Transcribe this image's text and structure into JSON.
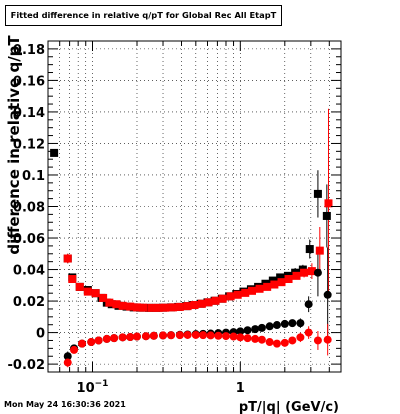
{
  "title": "Fitted difference in relative q/pT for Global Rec All EtapT",
  "timestamp": "Mon May 24 16:30:36 2021",
  "colors": {
    "series_black": "#000000",
    "series_red": "#ff0000",
    "grid": "#000000"
  },
  "chart_data": {
    "type": "scatter",
    "xlabel": "pT/|q| (GeV/c)",
    "ylabel": "difference in relative q/pT",
    "x_scale": "log",
    "xlim": [
      0.05,
      4.8
    ],
    "ylim": [
      -0.025,
      0.185
    ],
    "x_ticks": [
      {
        "value": 0.1,
        "label": "10^-1"
      },
      {
        "value": 1,
        "label": "1"
      }
    ],
    "y_ticks": [
      {
        "value": -0.02,
        "label": "-0.02"
      },
      {
        "value": 0,
        "label": "0"
      },
      {
        "value": 0.02,
        "label": "0.02"
      },
      {
        "value": 0.04,
        "label": "0.04"
      },
      {
        "value": 0.06,
        "label": "0.06"
      },
      {
        "value": 0.08,
        "label": "0.08"
      },
      {
        "value": 0.1,
        "label": "0.1"
      },
      {
        "value": 0.12,
        "label": "0.12"
      },
      {
        "value": 0.14,
        "label": "0.14"
      },
      {
        "value": 0.16,
        "label": "0.16"
      },
      {
        "value": 0.18,
        "label": "0.18"
      }
    ],
    "grid": true,
    "series": [
      {
        "marker": "square",
        "color": "#000000",
        "points": [
          [
            0.055,
            0.114,
            0.002
          ],
          [
            0.068,
            0.047,
            0.003
          ],
          [
            0.073,
            0.035,
            0.002
          ],
          [
            0.082,
            0.029,
            0.002
          ],
          [
            0.093,
            0.027,
            0.002
          ],
          [
            0.105,
            0.025,
            0.001
          ],
          [
            0.115,
            0.022,
            0.001
          ],
          [
            0.125,
            0.019,
            0.001
          ],
          [
            0.135,
            0.018,
            0.001
          ],
          [
            0.15,
            0.017,
            0.001
          ],
          [
            0.17,
            0.0165,
            0.001
          ],
          [
            0.19,
            0.016,
            0.001
          ],
          [
            0.21,
            0.0158,
            0.001
          ],
          [
            0.24,
            0.0157,
            0.001
          ],
          [
            0.27,
            0.0157,
            0.001
          ],
          [
            0.3,
            0.0158,
            0.001
          ],
          [
            0.34,
            0.016,
            0.001
          ],
          [
            0.38,
            0.0163,
            0.001
          ],
          [
            0.43,
            0.0168,
            0.001
          ],
          [
            0.48,
            0.0175,
            0.001
          ],
          [
            0.54,
            0.0183,
            0.001
          ],
          [
            0.6,
            0.0192,
            0.001
          ],
          [
            0.67,
            0.0202,
            0.001
          ],
          [
            0.75,
            0.0215,
            0.001
          ],
          [
            0.84,
            0.023,
            0.001
          ],
          [
            0.94,
            0.0245,
            0.001
          ],
          [
            1.05,
            0.026,
            0.001
          ],
          [
            1.18,
            0.0275,
            0.001
          ],
          [
            1.32,
            0.029,
            0.001
          ],
          [
            1.48,
            0.031,
            0.001
          ],
          [
            1.66,
            0.033,
            0.002
          ],
          [
            1.86,
            0.035,
            0.002
          ],
          [
            2.1,
            0.036,
            0.002
          ],
          [
            2.35,
            0.038,
            0.003
          ],
          [
            2.65,
            0.04,
            0.003
          ],
          [
            2.95,
            0.053,
            0.006
          ],
          [
            3.35,
            0.088,
            0.015
          ],
          [
            3.85,
            0.074,
            0.02
          ]
        ]
      },
      {
        "marker": "square",
        "color": "#ff0000",
        "points": [
          [
            0.068,
            0.047,
            0.003
          ],
          [
            0.073,
            0.034,
            0.002
          ],
          [
            0.082,
            0.029,
            0.002
          ],
          [
            0.093,
            0.026,
            0.002
          ],
          [
            0.105,
            0.025,
            0.001
          ],
          [
            0.118,
            0.022,
            0.001
          ],
          [
            0.13,
            0.019,
            0.001
          ],
          [
            0.145,
            0.018,
            0.001
          ],
          [
            0.16,
            0.017,
            0.001
          ],
          [
            0.18,
            0.0165,
            0.001
          ],
          [
            0.2,
            0.016,
            0.001
          ],
          [
            0.22,
            0.0158,
            0.001
          ],
          [
            0.25,
            0.0157,
            0.001
          ],
          [
            0.28,
            0.0157,
            0.001
          ],
          [
            0.31,
            0.0158,
            0.001
          ],
          [
            0.35,
            0.016,
            0.001
          ],
          [
            0.39,
            0.0163,
            0.001
          ],
          [
            0.44,
            0.0168,
            0.001
          ],
          [
            0.49,
            0.0175,
            0.001
          ],
          [
            0.55,
            0.0183,
            0.001
          ],
          [
            0.61,
            0.0192,
            0.001
          ],
          [
            0.68,
            0.0202,
            0.001
          ],
          [
            0.76,
            0.0215,
            0.001
          ],
          [
            0.86,
            0.023,
            0.001
          ],
          [
            0.96,
            0.024,
            0.001
          ],
          [
            1.08,
            0.0252,
            0.001
          ],
          [
            1.2,
            0.0265,
            0.001
          ],
          [
            1.35,
            0.0278,
            0.001
          ],
          [
            1.52,
            0.029,
            0.001
          ],
          [
            1.7,
            0.0305,
            0.002
          ],
          [
            1.9,
            0.032,
            0.002
          ],
          [
            2.12,
            0.034,
            0.002
          ],
          [
            2.4,
            0.036,
            0.002
          ],
          [
            2.7,
            0.038,
            0.003
          ],
          [
            3.05,
            0.039,
            0.005
          ],
          [
            3.45,
            0.052,
            0.015
          ],
          [
            3.95,
            0.082,
            0.06
          ]
        ]
      },
      {
        "marker": "circle",
        "color": "#000000",
        "points": [
          [
            0.068,
            -0.015,
            0.003
          ],
          [
            0.075,
            -0.01,
            0.002
          ],
          [
            0.085,
            -0.007,
            0.002
          ],
          [
            0.098,
            -0.006,
            0.001
          ],
          [
            0.11,
            -0.005,
            0.001
          ],
          [
            0.125,
            -0.004,
            0.001
          ],
          [
            0.14,
            -0.0035,
            0.001
          ],
          [
            0.16,
            -0.003,
            0.001
          ],
          [
            0.18,
            -0.0028,
            0.001
          ],
          [
            0.2,
            -0.0025,
            0.001
          ],
          [
            0.23,
            -0.0023,
            0.001
          ],
          [
            0.26,
            -0.002,
            0.001
          ],
          [
            0.3,
            -0.0018,
            0.001
          ],
          [
            0.34,
            -0.0016,
            0.001
          ],
          [
            0.39,
            -0.0014,
            0.001
          ],
          [
            0.44,
            -0.0012,
            0.001
          ],
          [
            0.5,
            -0.001,
            0.001
          ],
          [
            0.56,
            -0.0008,
            0.001
          ],
          [
            0.63,
            -0.0006,
            0.001
          ],
          [
            0.71,
            -0.0003,
            0.001
          ],
          [
            0.8,
            0.0,
            0.001
          ],
          [
            0.9,
            0.0003,
            0.001
          ],
          [
            1.0,
            0.0008,
            0.001
          ],
          [
            1.12,
            0.0015,
            0.001
          ],
          [
            1.26,
            0.0022,
            0.001
          ],
          [
            1.4,
            0.003,
            0.001
          ],
          [
            1.58,
            0.004,
            0.001
          ],
          [
            1.77,
            0.0048,
            0.001
          ],
          [
            2.0,
            0.0055,
            0.002
          ],
          [
            2.25,
            0.006,
            0.002
          ],
          [
            2.55,
            0.006,
            0.003
          ],
          [
            2.9,
            0.018,
            0.005
          ],
          [
            3.35,
            0.038,
            0.015
          ],
          [
            3.9,
            0.024,
            0.03
          ]
        ]
      },
      {
        "marker": "circle",
        "color": "#ff0000",
        "points": [
          [
            0.068,
            -0.019,
            0.003
          ],
          [
            0.075,
            -0.011,
            0.002
          ],
          [
            0.085,
            -0.007,
            0.002
          ],
          [
            0.098,
            -0.006,
            0.001
          ],
          [
            0.11,
            -0.005,
            0.001
          ],
          [
            0.125,
            -0.004,
            0.001
          ],
          [
            0.14,
            -0.0035,
            0.001
          ],
          [
            0.16,
            -0.003,
            0.001
          ],
          [
            0.18,
            -0.0028,
            0.001
          ],
          [
            0.2,
            -0.0025,
            0.001
          ],
          [
            0.23,
            -0.0023,
            0.001
          ],
          [
            0.26,
            -0.002,
            0.001
          ],
          [
            0.3,
            -0.0018,
            0.001
          ],
          [
            0.34,
            -0.0017,
            0.001
          ],
          [
            0.39,
            -0.0016,
            0.001
          ],
          [
            0.44,
            -0.0015,
            0.001
          ],
          [
            0.5,
            -0.0015,
            0.001
          ],
          [
            0.56,
            -0.0016,
            0.001
          ],
          [
            0.63,
            -0.0018,
            0.001
          ],
          [
            0.71,
            -0.002,
            0.001
          ],
          [
            0.8,
            -0.0022,
            0.001
          ],
          [
            0.9,
            -0.0025,
            0.001
          ],
          [
            1.0,
            -0.003,
            0.001
          ],
          [
            1.12,
            -0.0035,
            0.001
          ],
          [
            1.26,
            -0.004,
            0.001
          ],
          [
            1.4,
            -0.0045,
            0.001
          ],
          [
            1.58,
            -0.006,
            0.001
          ],
          [
            1.77,
            -0.007,
            0.001
          ],
          [
            2.0,
            -0.0065,
            0.002
          ],
          [
            2.25,
            -0.005,
            0.002
          ],
          [
            2.55,
            -0.003,
            0.003
          ],
          [
            2.9,
            0.0,
            0.004
          ],
          [
            3.35,
            -0.005,
            0.006
          ],
          [
            3.9,
            -0.0045,
            0.01
          ]
        ]
      }
    ]
  }
}
